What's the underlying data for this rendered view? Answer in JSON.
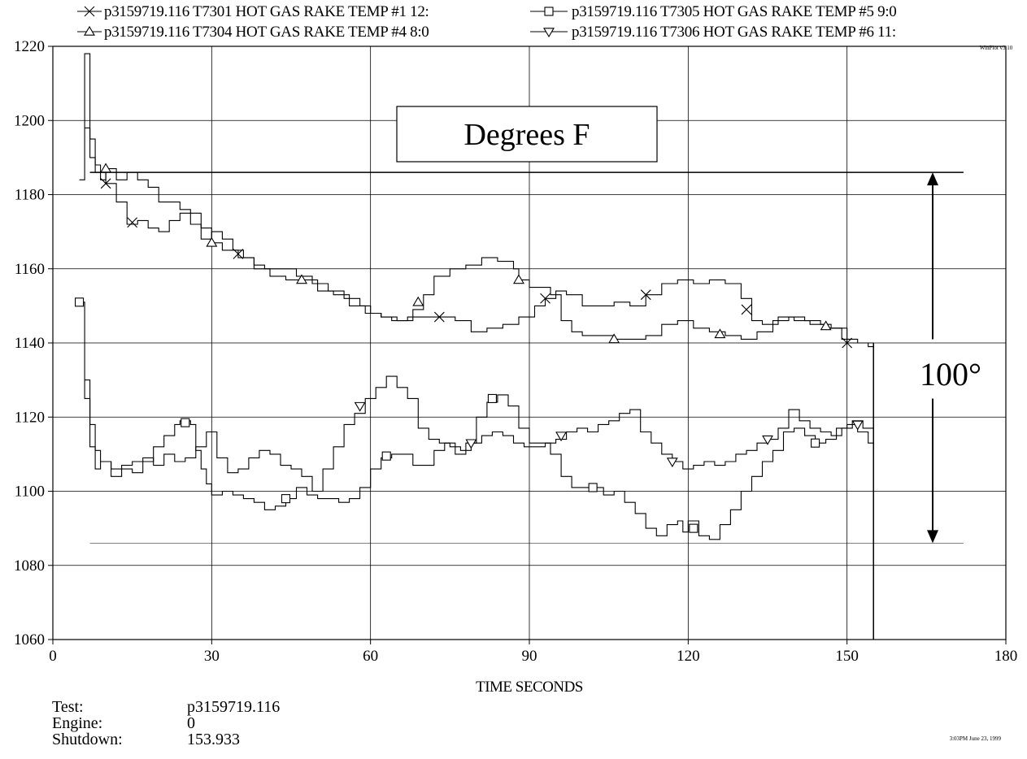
{
  "chart_data": {
    "type": "line",
    "xlabel": "TIME SECONDS",
    "ylabel": "",
    "xlim": [
      0,
      180
    ],
    "ylim": [
      1060,
      1220
    ],
    "x_ticks": [
      0,
      30,
      60,
      90,
      120,
      150,
      180
    ],
    "y_ticks": [
      1060,
      1080,
      1100,
      1120,
      1140,
      1160,
      1180,
      1200,
      1220
    ],
    "grid": true,
    "legend_position": "top",
    "version_tag": "WinPlot v3.10",
    "annotation_box": "Degrees F",
    "range_annotation": {
      "label": "100°",
      "from": 1086,
      "to": 1186,
      "x": 166
    },
    "reference_lines": [
      {
        "y": 1186,
        "x_range": [
          7,
          172
        ]
      },
      {
        "y": 1086,
        "x_range": [
          7,
          172
        ]
      }
    ],
    "shutdown_marker_x": 155,
    "series": [
      {
        "name": "p3159719.116  T7301 HOT GAS RAKE TEMP #1 12:",
        "marker": "x",
        "points": [
          [
            5,
            1184
          ],
          [
            6,
            1218
          ],
          [
            7,
            1195
          ],
          [
            8,
            1188
          ],
          [
            9,
            1186
          ],
          [
            10,
            1183
          ],
          [
            12,
            1178
          ],
          [
            14,
            1172
          ],
          [
            16,
            1173
          ],
          [
            18,
            1171
          ],
          [
            20,
            1170
          ],
          [
            22,
            1173
          ],
          [
            24,
            1175
          ],
          [
            26,
            1172
          ],
          [
            28,
            1168
          ],
          [
            30,
            1170
          ],
          [
            32,
            1168
          ],
          [
            34,
            1165
          ],
          [
            36,
            1163
          ],
          [
            38,
            1161
          ],
          [
            40,
            1160
          ],
          [
            43,
            1160
          ],
          [
            46,
            1158
          ],
          [
            49,
            1156
          ],
          [
            52,
            1154
          ],
          [
            55,
            1152
          ],
          [
            58,
            1150
          ],
          [
            60,
            1148
          ],
          [
            62,
            1147
          ],
          [
            64,
            1146
          ],
          [
            67,
            1147
          ],
          [
            70,
            1147
          ],
          [
            73,
            1147
          ],
          [
            76,
            1146
          ],
          [
            79,
            1143
          ],
          [
            82,
            1144
          ],
          [
            85,
            1145
          ],
          [
            88,
            1147
          ],
          [
            91,
            1150
          ],
          [
            93,
            1152
          ],
          [
            95,
            1154
          ],
          [
            97,
            1153
          ],
          [
            100,
            1150
          ],
          [
            103,
            1150
          ],
          [
            106,
            1151
          ],
          [
            109,
            1150
          ],
          [
            112,
            1153
          ],
          [
            115,
            1156
          ],
          [
            118,
            1157
          ],
          [
            121,
            1156
          ],
          [
            124,
            1157
          ],
          [
            127,
            1156
          ],
          [
            130,
            1152
          ],
          [
            132,
            1146
          ],
          [
            134,
            1145
          ],
          [
            137,
            1147
          ],
          [
            140,
            1146
          ],
          [
            143,
            1145
          ],
          [
            146,
            1144
          ],
          [
            149,
            1141
          ],
          [
            150,
            1140
          ],
          [
            152,
            1140
          ],
          [
            154,
            1139
          ],
          [
            155,
            1140
          ]
        ],
        "markers_at": [
          10,
          15,
          35,
          73,
          93,
          112,
          131,
          150
        ]
      },
      {
        "name": "p3159719.116  T7304 HOT GAS RAKE TEMP #4 8:0",
        "marker": "triangle-up",
        "points": [
          [
            6,
            1198
          ],
          [
            7,
            1190
          ],
          [
            8,
            1186
          ],
          [
            9,
            1184
          ],
          [
            10,
            1187
          ],
          [
            12,
            1184
          ],
          [
            14,
            1186
          ],
          [
            16,
            1184
          ],
          [
            18,
            1182
          ],
          [
            20,
            1178
          ],
          [
            22,
            1178
          ],
          [
            24,
            1176
          ],
          [
            26,
            1175
          ],
          [
            28,
            1171
          ],
          [
            30,
            1167
          ],
          [
            32,
            1165
          ],
          [
            35,
            1163
          ],
          [
            38,
            1160
          ],
          [
            41,
            1158
          ],
          [
            44,
            1157
          ],
          [
            47,
            1157
          ],
          [
            50,
            1154
          ],
          [
            53,
            1153
          ],
          [
            56,
            1150
          ],
          [
            59,
            1148
          ],
          [
            62,
            1147
          ],
          [
            65,
            1146
          ],
          [
            68,
            1149
          ],
          [
            70,
            1153
          ],
          [
            72,
            1158
          ],
          [
            75,
            1160
          ],
          [
            78,
            1161
          ],
          [
            81,
            1163
          ],
          [
            84,
            1162
          ],
          [
            87,
            1160
          ],
          [
            88,
            1157
          ],
          [
            90,
            1155
          ],
          [
            92,
            1155
          ],
          [
            94,
            1153
          ],
          [
            96,
            1146
          ],
          [
            98,
            1143
          ],
          [
            100,
            1142
          ],
          [
            103,
            1142
          ],
          [
            106,
            1141
          ],
          [
            109,
            1141
          ],
          [
            112,
            1142
          ],
          [
            115,
            1145
          ],
          [
            118,
            1146
          ],
          [
            121,
            1144
          ],
          [
            124,
            1143
          ],
          [
            127,
            1142
          ],
          [
            130,
            1141
          ],
          [
            133,
            1143
          ],
          [
            136,
            1146
          ],
          [
            139,
            1147
          ],
          [
            142,
            1146
          ],
          [
            145,
            1145
          ],
          [
            147,
            1144
          ],
          [
            150,
            1141
          ],
          [
            152,
            1140
          ],
          [
            155,
            1140
          ]
        ],
        "markers_at": [
          10,
          30,
          47,
          69,
          88,
          106,
          126,
          146
        ]
      },
      {
        "name": "p3159719.116  T7305 HOT GAS RAKE TEMP #5 9:0",
        "marker": "square",
        "points": [
          [
            5,
            1151
          ],
          [
            6,
            1125
          ],
          [
            7,
            1112
          ],
          [
            8,
            1106
          ],
          [
            9,
            1108
          ],
          [
            11,
            1104
          ],
          [
            13,
            1106
          ],
          [
            15,
            1105
          ],
          [
            17,
            1108
          ],
          [
            19,
            1112
          ],
          [
            21,
            1115
          ],
          [
            23,
            1118
          ],
          [
            24,
            1119
          ],
          [
            26,
            1118
          ],
          [
            27,
            1111
          ],
          [
            28,
            1106
          ],
          [
            29,
            1102
          ],
          [
            30,
            1099
          ],
          [
            32,
            1100
          ],
          [
            34,
            1099
          ],
          [
            36,
            1098
          ],
          [
            38,
            1097
          ],
          [
            40,
            1095
          ],
          [
            42,
            1096
          ],
          [
            44,
            1098
          ],
          [
            46,
            1101
          ],
          [
            48,
            1099
          ],
          [
            50,
            1098
          ],
          [
            52,
            1098
          ],
          [
            54,
            1097
          ],
          [
            56,
            1098
          ],
          [
            58,
            1101
          ],
          [
            60,
            1106
          ],
          [
            62,
            1109
          ],
          [
            64,
            1110
          ],
          [
            66,
            1110
          ],
          [
            68,
            1107
          ],
          [
            70,
            1107
          ],
          [
            72,
            1111
          ],
          [
            74,
            1113
          ],
          [
            76,
            1110
          ],
          [
            78,
            1113
          ],
          [
            80,
            1120
          ],
          [
            82,
            1124
          ],
          [
            84,
            1126
          ],
          [
            86,
            1123
          ],
          [
            88,
            1117
          ],
          [
            90,
            1113
          ],
          [
            92,
            1113
          ],
          [
            94,
            1110
          ],
          [
            96,
            1104
          ],
          [
            98,
            1101
          ],
          [
            100,
            1101
          ],
          [
            102,
            1101
          ],
          [
            104,
            1099
          ],
          [
            106,
            1100
          ],
          [
            108,
            1097
          ],
          [
            110,
            1094
          ],
          [
            112,
            1090
          ],
          [
            114,
            1088
          ],
          [
            116,
            1091
          ],
          [
            118,
            1092
          ],
          [
            119,
            1089
          ],
          [
            120,
            1092
          ],
          [
            122,
            1088
          ],
          [
            124,
            1087
          ],
          [
            126,
            1091
          ],
          [
            128,
            1095
          ],
          [
            130,
            1100
          ],
          [
            132,
            1104
          ],
          [
            134,
            1108
          ],
          [
            136,
            1111
          ],
          [
            138,
            1116
          ],
          [
            140,
            1117
          ],
          [
            142,
            1115
          ],
          [
            144,
            1113
          ],
          [
            146,
            1114
          ],
          [
            148,
            1117
          ],
          [
            150,
            1118
          ],
          [
            152,
            1116
          ],
          [
            154,
            1113
          ],
          [
            155,
            1114
          ]
        ],
        "markers_at": [
          5,
          25,
          44,
          63,
          83,
          102,
          121,
          144
        ]
      },
      {
        "name": "p3159719.116  T7306 HOT GAS RAKE TEMP #6 11:",
        "marker": "triangle-down",
        "points": [
          [
            6,
            1130
          ],
          [
            7,
            1118
          ],
          [
            8,
            1111
          ],
          [
            9,
            1108
          ],
          [
            11,
            1106
          ],
          [
            13,
            1107
          ],
          [
            15,
            1108
          ],
          [
            17,
            1109
          ],
          [
            19,
            1107
          ],
          [
            21,
            1110
          ],
          [
            23,
            1108
          ],
          [
            25,
            1109
          ],
          [
            27,
            1112
          ],
          [
            29,
            1116
          ],
          [
            31,
            1109
          ],
          [
            33,
            1105
          ],
          [
            35,
            1106
          ],
          [
            37,
            1109
          ],
          [
            39,
            1111
          ],
          [
            41,
            1110
          ],
          [
            43,
            1107
          ],
          [
            45,
            1106
          ],
          [
            47,
            1104
          ],
          [
            49,
            1100
          ],
          [
            51,
            1106
          ],
          [
            53,
            1112
          ],
          [
            55,
            1118
          ],
          [
            57,
            1121
          ],
          [
            59,
            1125
          ],
          [
            61,
            1128
          ],
          [
            63,
            1131
          ],
          [
            65,
            1128
          ],
          [
            67,
            1125
          ],
          [
            69,
            1117
          ],
          [
            71,
            1114
          ],
          [
            73,
            1113
          ],
          [
            75,
            1112
          ],
          [
            77,
            1111
          ],
          [
            79,
            1113
          ],
          [
            81,
            1115
          ],
          [
            83,
            1116
          ],
          [
            85,
            1115
          ],
          [
            87,
            1113
          ],
          [
            89,
            1112
          ],
          [
            91,
            1112
          ],
          [
            93,
            1113
          ],
          [
            95,
            1114
          ],
          [
            97,
            1116
          ],
          [
            99,
            1117
          ],
          [
            101,
            1116
          ],
          [
            103,
            1118
          ],
          [
            105,
            1119
          ],
          [
            107,
            1121
          ],
          [
            109,
            1122
          ],
          [
            111,
            1116
          ],
          [
            113,
            1113
          ],
          [
            115,
            1110
          ],
          [
            117,
            1108
          ],
          [
            119,
            1106
          ],
          [
            121,
            1107
          ],
          [
            123,
            1108
          ],
          [
            125,
            1107
          ],
          [
            127,
            1108
          ],
          [
            129,
            1110
          ],
          [
            131,
            1111
          ],
          [
            133,
            1113
          ],
          [
            135,
            1114
          ],
          [
            137,
            1117
          ],
          [
            139,
            1122
          ],
          [
            141,
            1119
          ],
          [
            143,
            1117
          ],
          [
            145,
            1116
          ],
          [
            147,
            1115
          ],
          [
            149,
            1117
          ],
          [
            151,
            1119
          ],
          [
            153,
            1117
          ],
          [
            155,
            1116
          ]
        ],
        "markers_at": [
          58,
          79,
          96,
          117,
          135,
          152
        ]
      }
    ]
  },
  "info": {
    "test_label": "Test:",
    "test_value": "p3159719.116",
    "engine_label": "Engine:",
    "engine_value": "0",
    "shutdown_label": "Shutdown:",
    "shutdown_value": "153.933"
  },
  "footer_stamp": "3:03PM June 23, 1999"
}
